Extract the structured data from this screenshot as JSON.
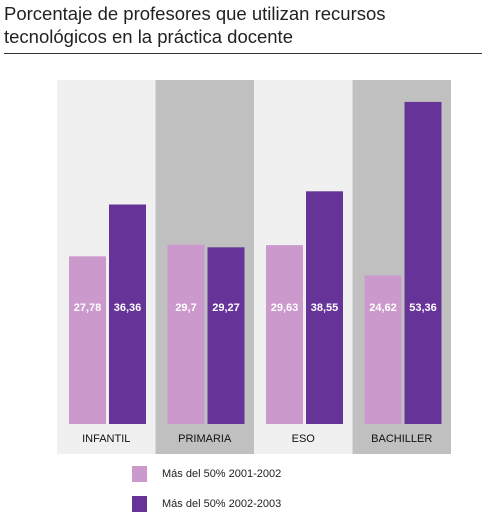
{
  "chart_data": {
    "type": "bar",
    "title": "Porcentaje de profesores que utilizan recursos tecnológicos en la práctica docente",
    "categories": [
      "INFANTIL",
      "PRIMARIA",
      "ESO",
      "BACHILLER"
    ],
    "series": [
      {
        "name": "Más del 50% 2001-2002",
        "values": [
          27.78,
          29.7,
          29.63,
          24.62
        ],
        "labels": [
          "27,78",
          "29,7",
          "29,63",
          "24,62"
        ],
        "color": "#cc99cc"
      },
      {
        "name": "Más del 50% 2002-2003",
        "values": [
          36.36,
          29.27,
          38.55,
          53.36
        ],
        "labels": [
          "36,36",
          "29,27",
          "38,55",
          "53,36"
        ],
        "color": "#663399"
      }
    ],
    "ylim": [
      0,
      55
    ],
    "grid": false,
    "legend_position": "bottom",
    "panel_colors": [
      "#f0f0f0",
      "#c0c0c0"
    ]
  }
}
